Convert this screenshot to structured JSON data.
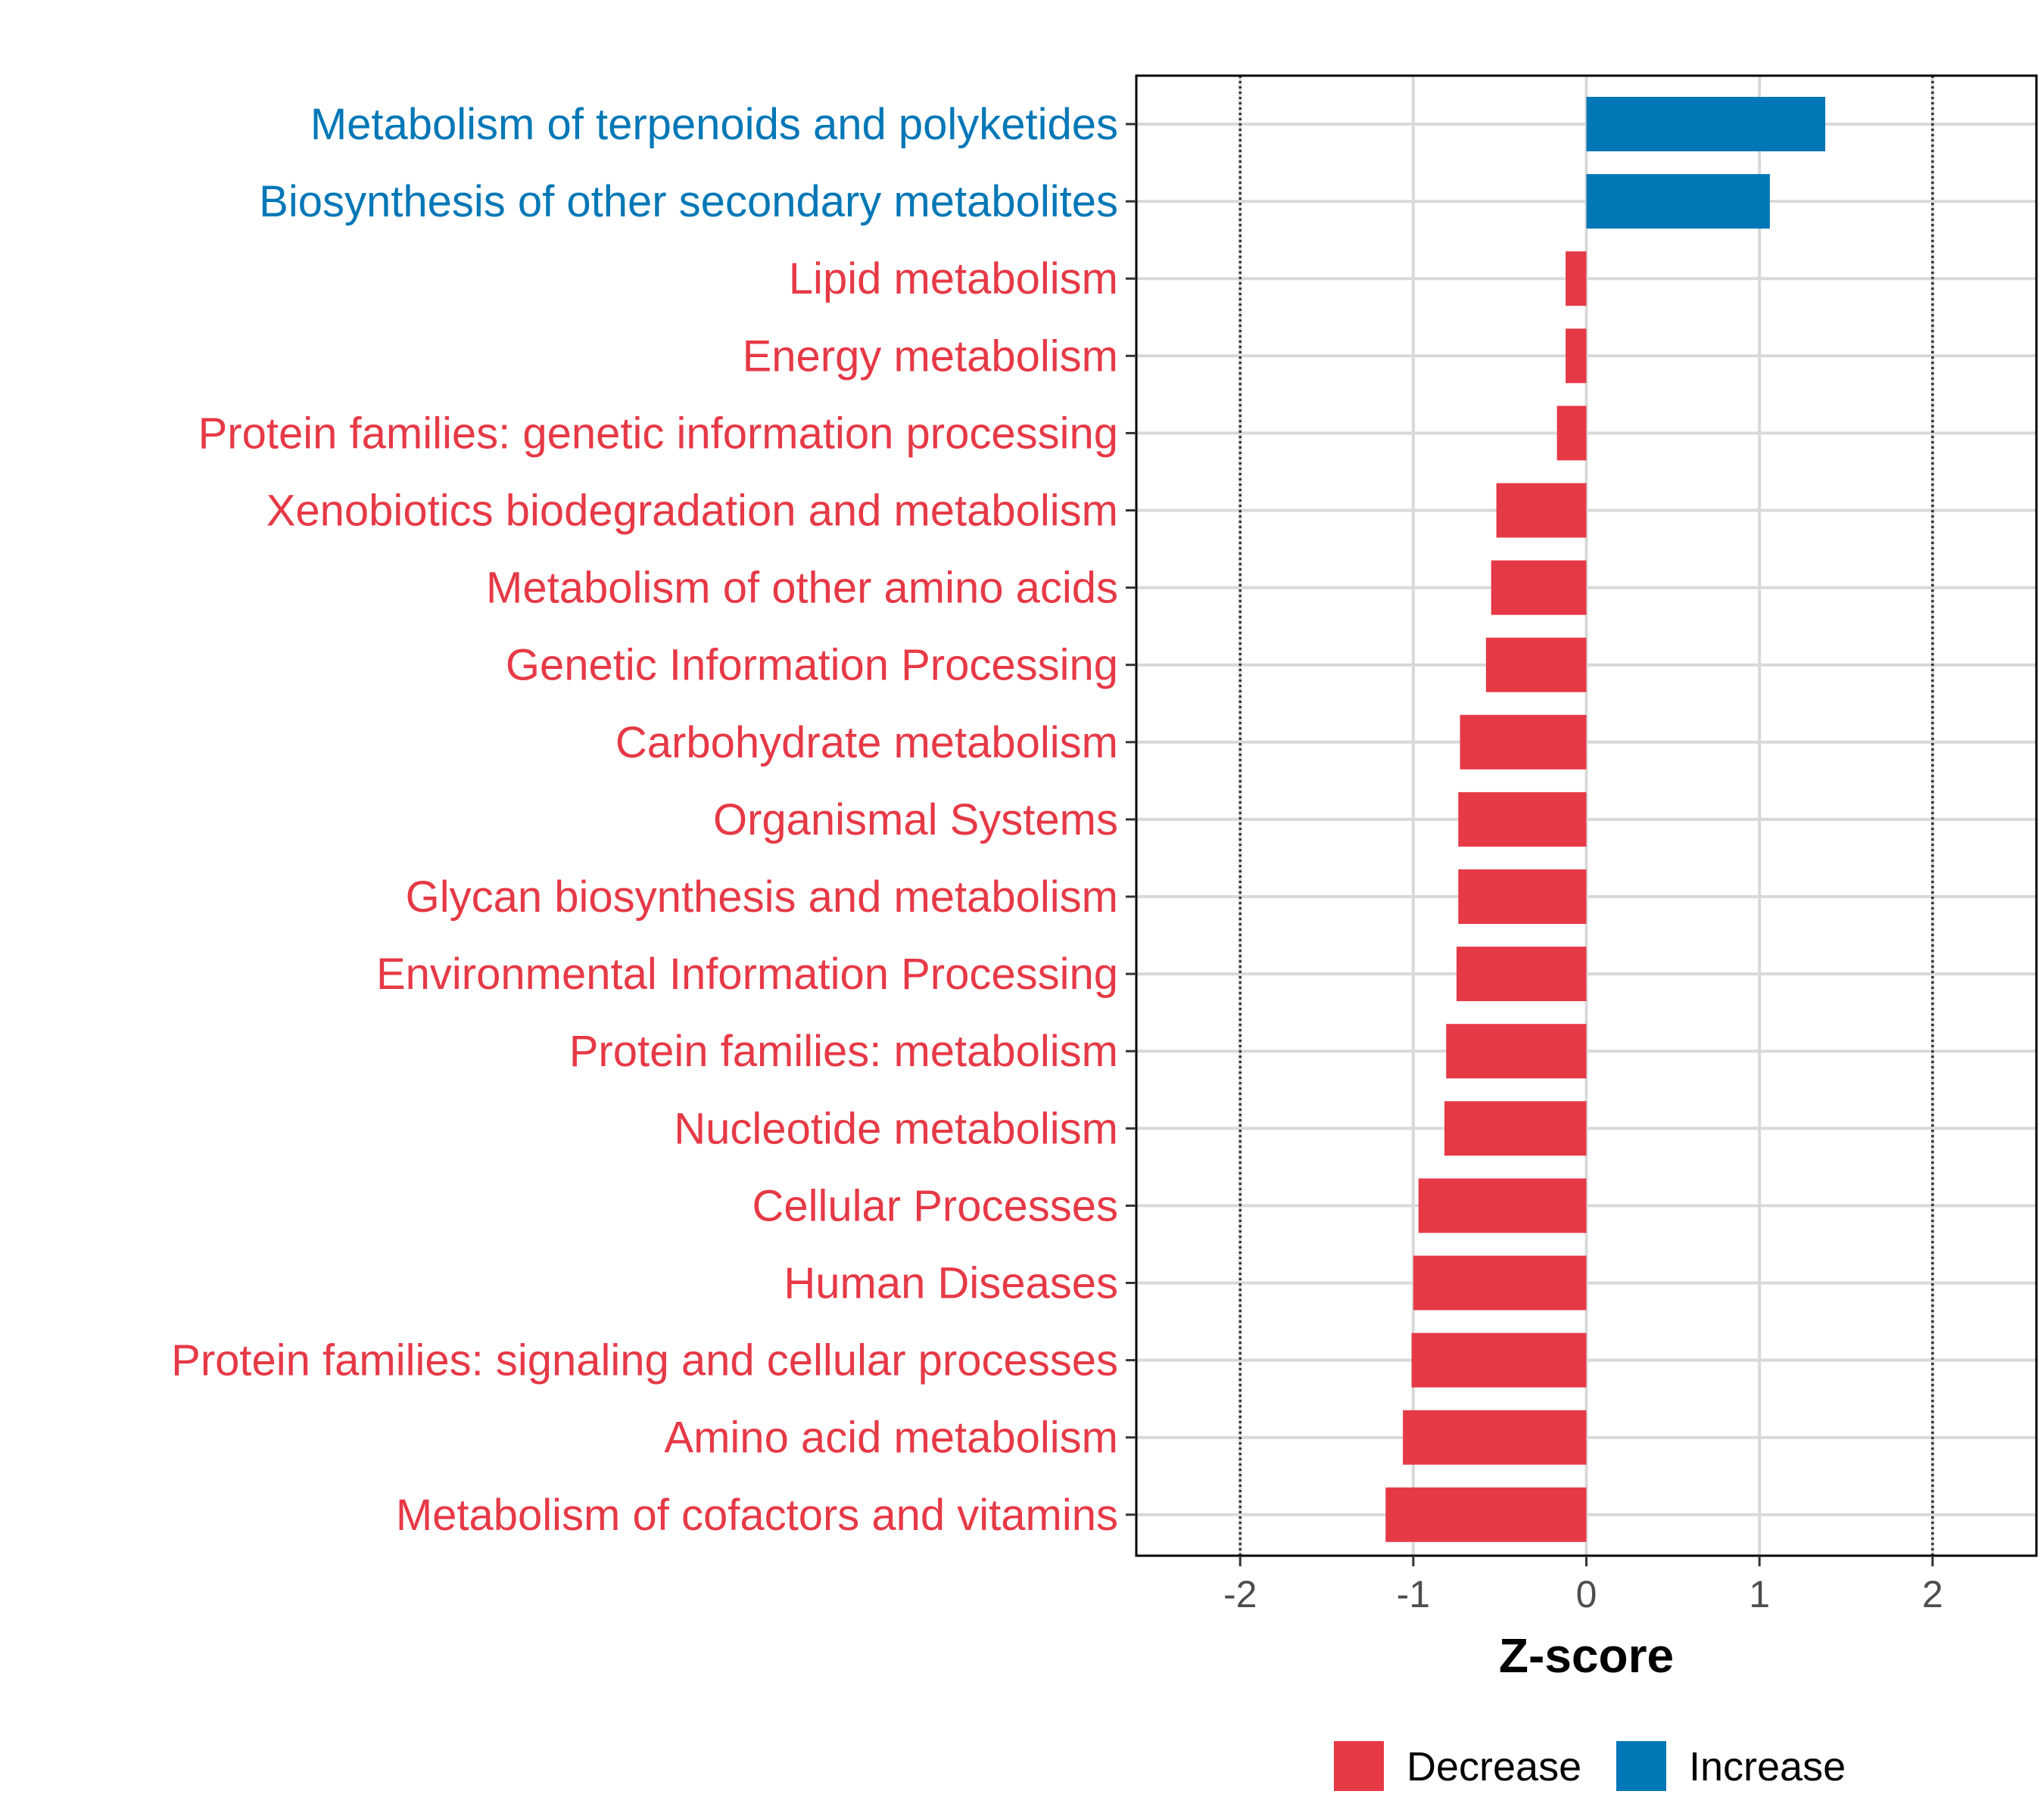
{
  "chart_data": {
    "type": "bar",
    "orientation": "horizontal",
    "categories": [
      "Metabolism of terpenoids and polyketides",
      "Biosynthesis of other secondary metabolites",
      "Lipid metabolism",
      "Energy metabolism",
      "Protein families: genetic information processing",
      "Xenobiotics biodegradation and metabolism",
      "Metabolism of other amino acids",
      "Genetic Information Processing",
      "Carbohydrate metabolism",
      "Organismal Systems",
      "Glycan biosynthesis and metabolism",
      "Environmental Information Processing",
      "Protein families: metabolism",
      "Nucleotide metabolism",
      "Cellular Processes",
      "Human Diseases",
      "Protein families: signaling and cellular processes",
      "Amino acid metabolism",
      "Metabolism of cofactors and vitamins"
    ],
    "values": [
      1.38,
      1.06,
      -0.12,
      -0.12,
      -0.17,
      -0.52,
      -0.55,
      -0.58,
      -0.73,
      -0.74,
      -0.74,
      -0.75,
      -0.81,
      -0.82,
      -0.97,
      -1.0,
      -1.01,
      -1.06,
      -1.16
    ],
    "groups": [
      "Increase",
      "Increase",
      "Decrease",
      "Decrease",
      "Decrease",
      "Decrease",
      "Decrease",
      "Decrease",
      "Decrease",
      "Decrease",
      "Decrease",
      "Decrease",
      "Decrease",
      "Decrease",
      "Decrease",
      "Decrease",
      "Decrease",
      "Decrease",
      "Decrease"
    ],
    "xlabel": "Z-score",
    "ylabel": "",
    "title": "",
    "xlim": [
      -2.6,
      2.6
    ],
    "xticks": [
      -2,
      -1,
      0,
      1,
      2
    ],
    "xtick_labels": [
      "-2",
      "-1",
      "0",
      "1",
      "2"
    ],
    "reference_lines": [
      -2,
      2
    ],
    "grid": true,
    "legend": {
      "position": "bottom",
      "entries": [
        {
          "label": "Decrease",
          "color": "#E63946"
        },
        {
          "label": "Increase",
          "color": "#0077B6"
        }
      ]
    },
    "colors": {
      "Decrease": "#E63946",
      "Increase": "#0077B6"
    }
  }
}
